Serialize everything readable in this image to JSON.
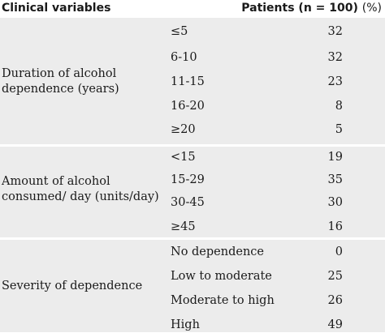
{
  "table": {
    "header": {
      "clinical_variables": "Clinical variables",
      "patients": "Patients (n = 100)",
      "percent": "(%)"
    },
    "groups": [
      {
        "label": "Duration of alcohol dependence (years)",
        "rows": [
          {
            "category": "≤5",
            "value": "32"
          },
          {
            "category": "6-10",
            "value": "32"
          },
          {
            "category": "11-15",
            "value": "23"
          },
          {
            "category": "16-20",
            "value": "8"
          },
          {
            "category": "≥20",
            "value": "5"
          }
        ]
      },
      {
        "label": "Amount of alcohol consumed/ day (units/day)",
        "rows": [
          {
            "category": "<15",
            "value": "19"
          },
          {
            "category": "15-29",
            "value": "35"
          },
          {
            "category": "30-45",
            "value": "30"
          },
          {
            "category": "≥45",
            "value": "16"
          }
        ]
      },
      {
        "label": "Severity of dependence",
        "rows": [
          {
            "category": "No dependence",
            "value": "0"
          },
          {
            "category": "Low to moderate",
            "value": "25"
          },
          {
            "category": "Moderate to high",
            "value": "26"
          },
          {
            "category": "High",
            "value": "49"
          }
        ]
      }
    ]
  }
}
